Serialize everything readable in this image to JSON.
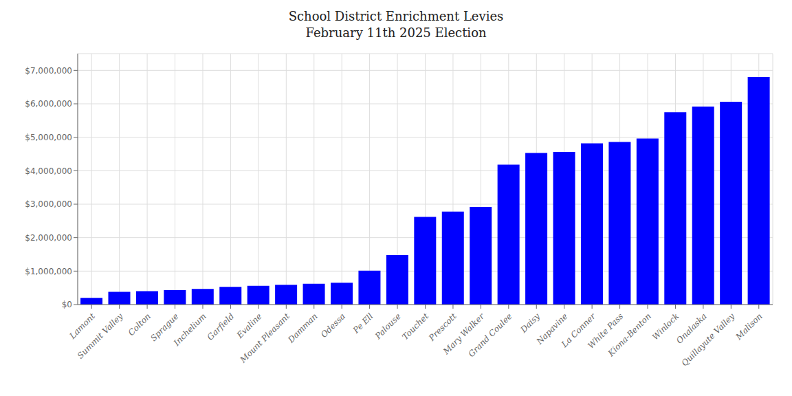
{
  "chart_data": {
    "type": "bar",
    "title": "School District Enrichment Levies\nFebruary 11th 2025 Election",
    "categories": [
      "Lamont",
      "Summit Valley",
      "Colton",
      "Sprague",
      "Inchelium",
      "Garfield",
      "Evaline",
      "Mount Pleasant",
      "Damman",
      "Odessa",
      "Pe Ell",
      "Palouse",
      "Touchet",
      "Prescott",
      "Mary Walker",
      "Grand Coulee",
      "Daisy",
      "Napavine",
      "La Conner",
      "White Pass",
      "Kiona-Benton",
      "Winlock",
      "Onalaska",
      "Quillayute Valley",
      "Malison"
    ],
    "values": [
      200000,
      380000,
      400000,
      430000,
      470000,
      530000,
      560000,
      590000,
      620000,
      650000,
      1010000,
      1480000,
      2620000,
      2780000,
      2920000,
      4180000,
      4530000,
      4560000,
      4820000,
      4860000,
      4960000,
      5750000,
      5920000,
      6060000,
      6800000
    ],
    "color": "#0000ff",
    "ylim": [
      0,
      7500000
    ],
    "yticks": [
      {
        "value": 0,
        "label": "$0"
      },
      {
        "value": 1000000,
        "label": "$1,000,000"
      },
      {
        "value": 2000000,
        "label": "$2,000,000"
      },
      {
        "value": 3000000,
        "label": "$3,000,000"
      },
      {
        "value": 4000000,
        "label": "$4,000,000"
      },
      {
        "value": 5000000,
        "label": "$5,000,000"
      },
      {
        "value": 6000000,
        "label": "$6,000,000"
      },
      {
        "value": 7000000,
        "label": "$7,000,000"
      }
    ],
    "grid": true
  }
}
